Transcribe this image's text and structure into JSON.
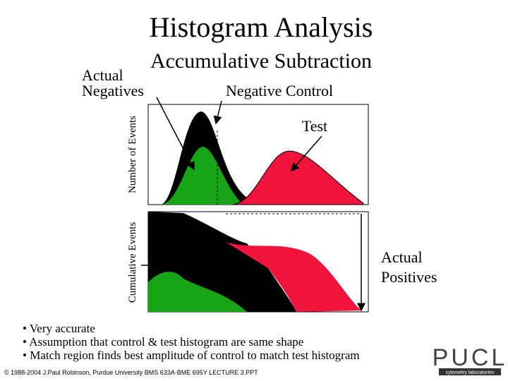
{
  "header": {
    "title": "Histogram Analysis",
    "subtitle": "Accumulative Subtraction"
  },
  "labels": {
    "actual_negatives": [
      "Actual",
      "Negatives"
    ],
    "negative_control": "Negative Control",
    "test": "Test",
    "number_of_events": "Number of Events",
    "cumulative_events": "Cumulative Events",
    "actual_positives": [
      "Actual",
      "Positives"
    ]
  },
  "bullets": [
    "Very accurate",
    "Assumption that control & test histogram are same shape",
    "Match region finds best amplitude of control to match test histogram"
  ],
  "footer": "© 1988-2004 J.Paul Robinson, Purdue University BMS 633A-BME 695Y LECTURE 3.PPT",
  "logo": {
    "name": "PUCL",
    "caption": "cytometry laboratories"
  }
}
